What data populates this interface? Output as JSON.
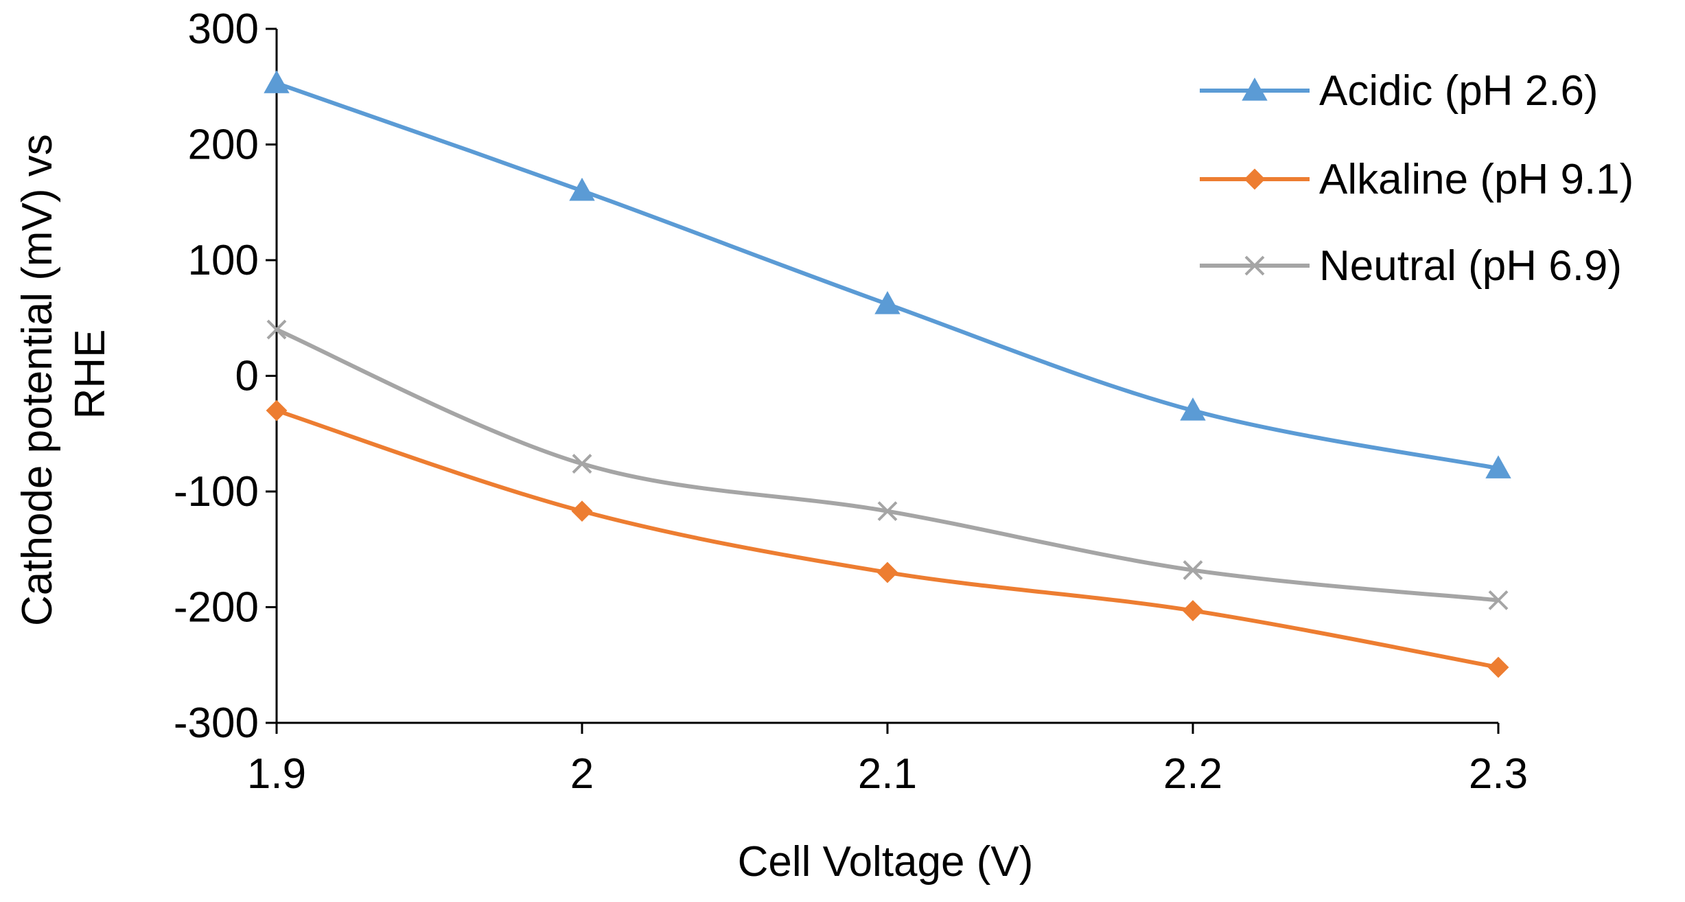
{
  "chart_data": {
    "type": "line",
    "title": "",
    "xlabel": "Cell Voltage (V)",
    "ylabel_lines": [
      "Cathode potential (mV) vs",
      "RHE"
    ],
    "x": [
      1.9,
      2.0,
      2.1,
      2.2,
      2.3
    ],
    "x_tick_labels": [
      "1.9",
      "2",
      "2.1",
      "2.2",
      "2.3"
    ],
    "y_ticks": [
      300,
      200,
      100,
      0,
      -100,
      -200,
      -300
    ],
    "y_tick_labels": [
      "300",
      "200",
      "100",
      "0",
      "-100",
      "-200",
      "-300"
    ],
    "xlim": [
      1.9,
      2.3
    ],
    "ylim": [
      -300,
      300
    ],
    "grid": false,
    "legend_position": "top-right",
    "series": [
      {
        "name": "Acidic (pH 2.6)",
        "color": "#5B9BD5",
        "marker": "triangle",
        "values": [
          253,
          160,
          62,
          -30,
          -80
        ]
      },
      {
        "name": "Alkaline (pH 9.1)",
        "color": "#ED7D31",
        "marker": "diamond",
        "values": [
          -30,
          -117,
          -170,
          -203,
          -252
        ]
      },
      {
        "name": "Neutral (pH 6.9)",
        "color": "#A5A5A5",
        "marker": "x",
        "values": [
          40,
          -76,
          -117,
          -168,
          -194
        ]
      }
    ]
  }
}
